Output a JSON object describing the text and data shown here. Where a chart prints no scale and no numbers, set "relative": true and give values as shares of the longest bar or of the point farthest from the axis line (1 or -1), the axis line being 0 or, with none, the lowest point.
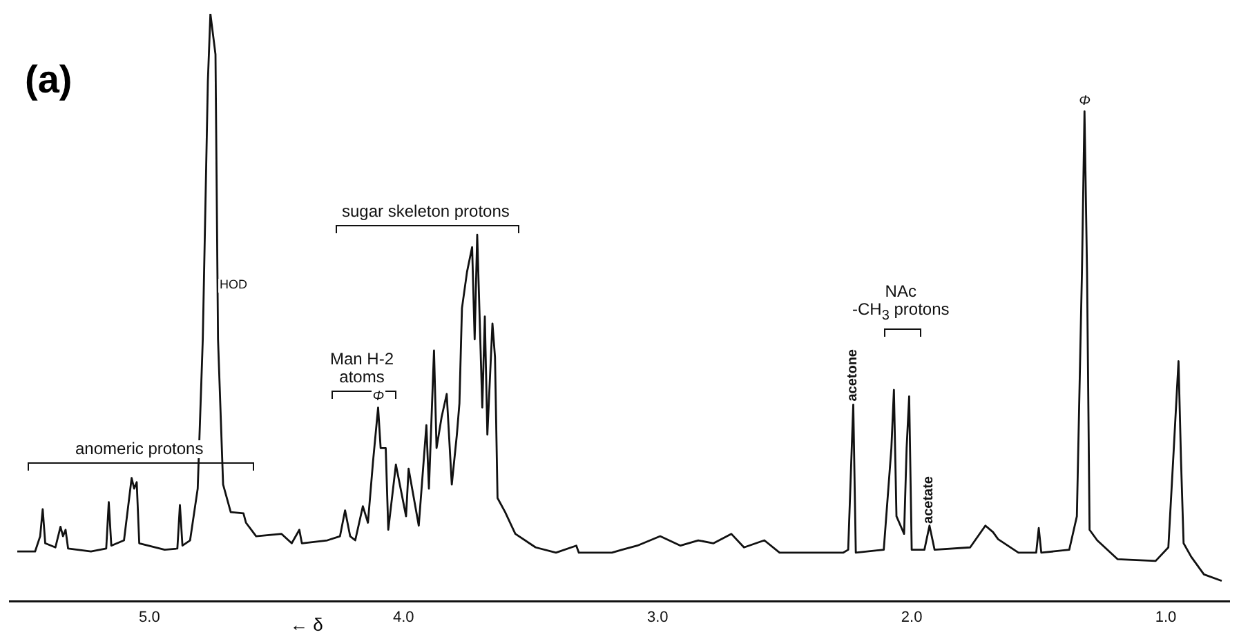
{
  "chart_data": {
    "type": "line",
    "title": "(a)",
    "xlabel": "← δ",
    "relative": true,
    "color": "#111111",
    "marker": "none",
    "legend": false,
    "grid": false,
    "xlim": [
      5.55,
      0.75
    ],
    "xticks": [
      {
        "value": 5,
        "label": "5.0"
      },
      {
        "value": 4,
        "label": "4.0"
      },
      {
        "value": 3,
        "label": "3.0"
      },
      {
        "value": 2,
        "label": "2.0"
      },
      {
        "value": 1,
        "label": "1.0"
      }
    ],
    "x": [
      5.52,
      5.45,
      5.43,
      5.42,
      5.41,
      5.37,
      5.35,
      5.34,
      5.33,
      5.32,
      5.23,
      5.17,
      5.16,
      5.15,
      5.1,
      5.07,
      5.06,
      5.05,
      5.04,
      4.94,
      4.89,
      4.88,
      4.87,
      4.84,
      4.81,
      4.79,
      4.77,
      4.76,
      4.74,
      4.73,
      4.71,
      4.68,
      4.63,
      4.62,
      4.58,
      4.48,
      4.44,
      4.41,
      4.4,
      4.3,
      4.25,
      4.23,
      4.21,
      4.19,
      4.16,
      4.14,
      4.12,
      4.1,
      4.09,
      4.07,
      4.06,
      4.03,
      3.99,
      3.98,
      3.94,
      3.91,
      3.9,
      3.88,
      3.87,
      3.85,
      3.83,
      3.81,
      3.79,
      3.78,
      3.77,
      3.75,
      3.73,
      3.72,
      3.71,
      3.69,
      3.68,
      3.67,
      3.65,
      3.64,
      3.63,
      3.6,
      3.56,
      3.48,
      3.4,
      3.32,
      3.31,
      3.18,
      3.14,
      3.08,
      2.99,
      2.91,
      2.84,
      2.78,
      2.71,
      2.66,
      2.58,
      2.52,
      2.27,
      2.25,
      2.23,
      2.22,
      2.11,
      2.08,
      2.07,
      2.06,
      2.03,
      2.02,
      2.01,
      2.0,
      1.95,
      1.93,
      1.91,
      1.77,
      1.71,
      1.68,
      1.66,
      1.58,
      1.51,
      1.5,
      1.49,
      1.38,
      1.35,
      1.33,
      1.32,
      1.31,
      1.3,
      1.27,
      1.19,
      1.04,
      0.99,
      0.97,
      0.95,
      0.94,
      0.93,
      0.9,
      0.85,
      0.78
    ],
    "values": [
      0.085,
      0.085,
      0.111,
      0.157,
      0.099,
      0.092,
      0.127,
      0.111,
      0.122,
      0.09,
      0.085,
      0.09,
      0.169,
      0.095,
      0.104,
      0.21,
      0.192,
      0.203,
      0.099,
      0.088,
      0.09,
      0.164,
      0.095,
      0.104,
      0.192,
      0.446,
      0.885,
      1.0,
      0.931,
      0.446,
      0.199,
      0.152,
      0.15,
      0.134,
      0.111,
      0.115,
      0.099,
      0.122,
      0.099,
      0.104,
      0.111,
      0.155,
      0.111,
      0.104,
      0.162,
      0.134,
      0.238,
      0.33,
      0.261,
      0.261,
      0.122,
      0.233,
      0.145,
      0.226,
      0.129,
      0.3,
      0.192,
      0.427,
      0.261,
      0.314,
      0.353,
      0.199,
      0.284,
      0.337,
      0.499,
      0.561,
      0.603,
      0.446,
      0.624,
      0.33,
      0.485,
      0.284,
      0.473,
      0.416,
      0.176,
      0.152,
      0.115,
      0.092,
      0.083,
      0.095,
      0.083,
      0.083,
      0.088,
      0.095,
      0.111,
      0.095,
      0.104,
      0.099,
      0.115,
      0.092,
      0.104,
      0.083,
      0.083,
      0.088,
      0.335,
      0.083,
      0.088,
      0.261,
      0.36,
      0.145,
      0.115,
      0.261,
      0.349,
      0.088,
      0.088,
      0.129,
      0.088,
      0.092,
      0.129,
      0.118,
      0.106,
      0.083,
      0.083,
      0.125,
      0.083,
      0.088,
      0.145,
      0.561,
      0.834,
      0.561,
      0.122,
      0.104,
      0.072,
      0.069,
      0.092,
      0.249,
      0.409,
      0.238,
      0.099,
      0.076,
      0.046,
      0.035
    ],
    "annotations": [
      "anomeric protons",
      "HOD",
      "Man H-2\natoms",
      {
        "text": "Φ",
        "x": 4.1,
        "y": 0.33
      },
      "sugar skeleton protons",
      {
        "text": "acetone",
        "x": 2.23,
        "y": 0.335
      },
      "NAc\n-CH$_{3}$ protons",
      {
        "text": "acetate",
        "x": 1.93,
        "y": 0.129
      },
      {
        "text": "Φ",
        "x": 1.32,
        "y": 0.834
      }
    ]
  }
}
